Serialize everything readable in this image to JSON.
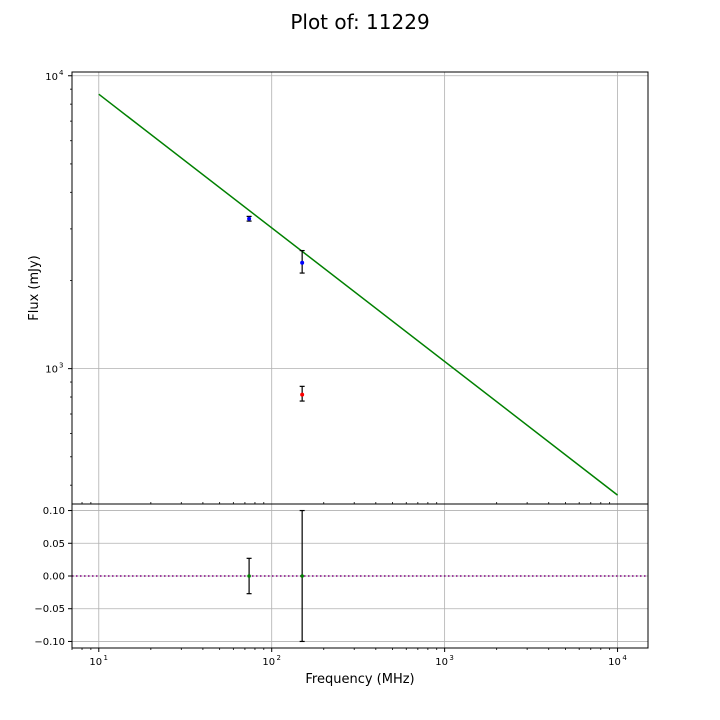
{
  "chart_data": [
    {
      "type": "scatter",
      "title": "Plot of: 11229",
      "xlabel": "",
      "ylabel": "Flux (mJy)",
      "xscale": "log",
      "yscale": "log",
      "xlim": [
        7,
        15000
      ],
      "ylim": [
        345,
        10300
      ],
      "grid": true,
      "y_tick_labels": [
        "10",
        "10"
      ],
      "y_tick_exponents": [
        "4",
        "3"
      ],
      "series": [
        {
          "type": "line",
          "color": "#008000",
          "x": [
            10,
            10000
          ],
          "y": [
            8650,
            370
          ]
        },
        {
          "type": "scatter",
          "color": "#0000ff",
          "points": [
            {
              "x": 74,
              "y": 3250,
              "yerr": [
                60,
                60
              ]
            },
            {
              "x": 150,
              "y": 2300,
              "yerr": [
                180,
                230
              ]
            }
          ]
        },
        {
          "type": "scatter",
          "color": "#ff0000",
          "points": [
            {
              "x": 150,
              "y": 815,
              "yerr": [
                40,
                55
              ]
            }
          ]
        }
      ]
    },
    {
      "type": "scatter",
      "title": "",
      "xlabel": "Frequency (MHz)",
      "ylabel": "",
      "xscale": "log",
      "xlim": [
        7,
        15000
      ],
      "ylim": [
        -0.11,
        0.11
      ],
      "grid": true,
      "y_ticks": [
        0.1,
        0.05,
        0.0,
        -0.05,
        -0.1
      ],
      "y_tick_labels": [
        "0.10",
        "0.05",
        "0.00",
        "−0.05",
        "−0.10"
      ],
      "x_tick_labels": [
        "10",
        "10",
        "10",
        "10"
      ],
      "x_tick_exponents": [
        "1",
        "2",
        "3",
        "4"
      ],
      "x_ticks": [
        10,
        100,
        1000,
        10000
      ],
      "reference_line": {
        "y": 0,
        "color": "#800080",
        "style": "dotted"
      },
      "series": [
        {
          "type": "scatter",
          "color": "#008000",
          "points": [
            {
              "x": 74,
              "y": 0,
              "yerr": [
                0.027,
                0.027
              ]
            },
            {
              "x": 150,
              "y": 0,
              "yerr": [
                0.1,
                0.1
              ]
            }
          ]
        }
      ]
    }
  ]
}
